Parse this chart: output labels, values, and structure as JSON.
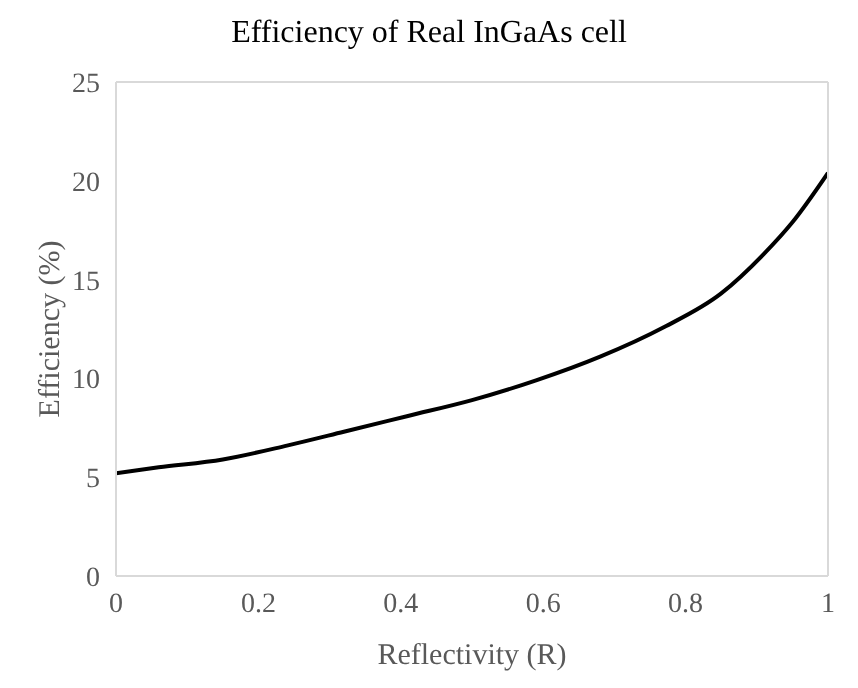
{
  "chart_data": {
    "type": "line",
    "title": "Efficiency of Real InGaAs cell",
    "xlabel": "Reflectivity (R)",
    "ylabel": "Efficiency (%)",
    "x": [
      0,
      0.06,
      0.15,
      0.24,
      0.32,
      0.41,
      0.5,
      0.59,
      0.68,
      0.77,
      0.85,
      0.91,
      0.95,
      1
    ],
    "series": [
      {
        "color": "#000000",
        "values": [
          5.2,
          5.5,
          5.9,
          6.6,
          7.3,
          8.1,
          8.9,
          9.9,
          11.1,
          12.6,
          14.3,
          16.3,
          17.9,
          20.4
        ]
      }
    ],
    "xlim": [
      0,
      1
    ],
    "xticks": [
      0,
      0.2,
      0.4,
      0.6,
      0.8,
      1
    ],
    "ylim": [
      0,
      25
    ],
    "yticks": [
      0,
      5,
      10,
      15,
      20,
      25
    ],
    "grid": false,
    "legend": false,
    "marker": "none",
    "line_style": "solid"
  }
}
